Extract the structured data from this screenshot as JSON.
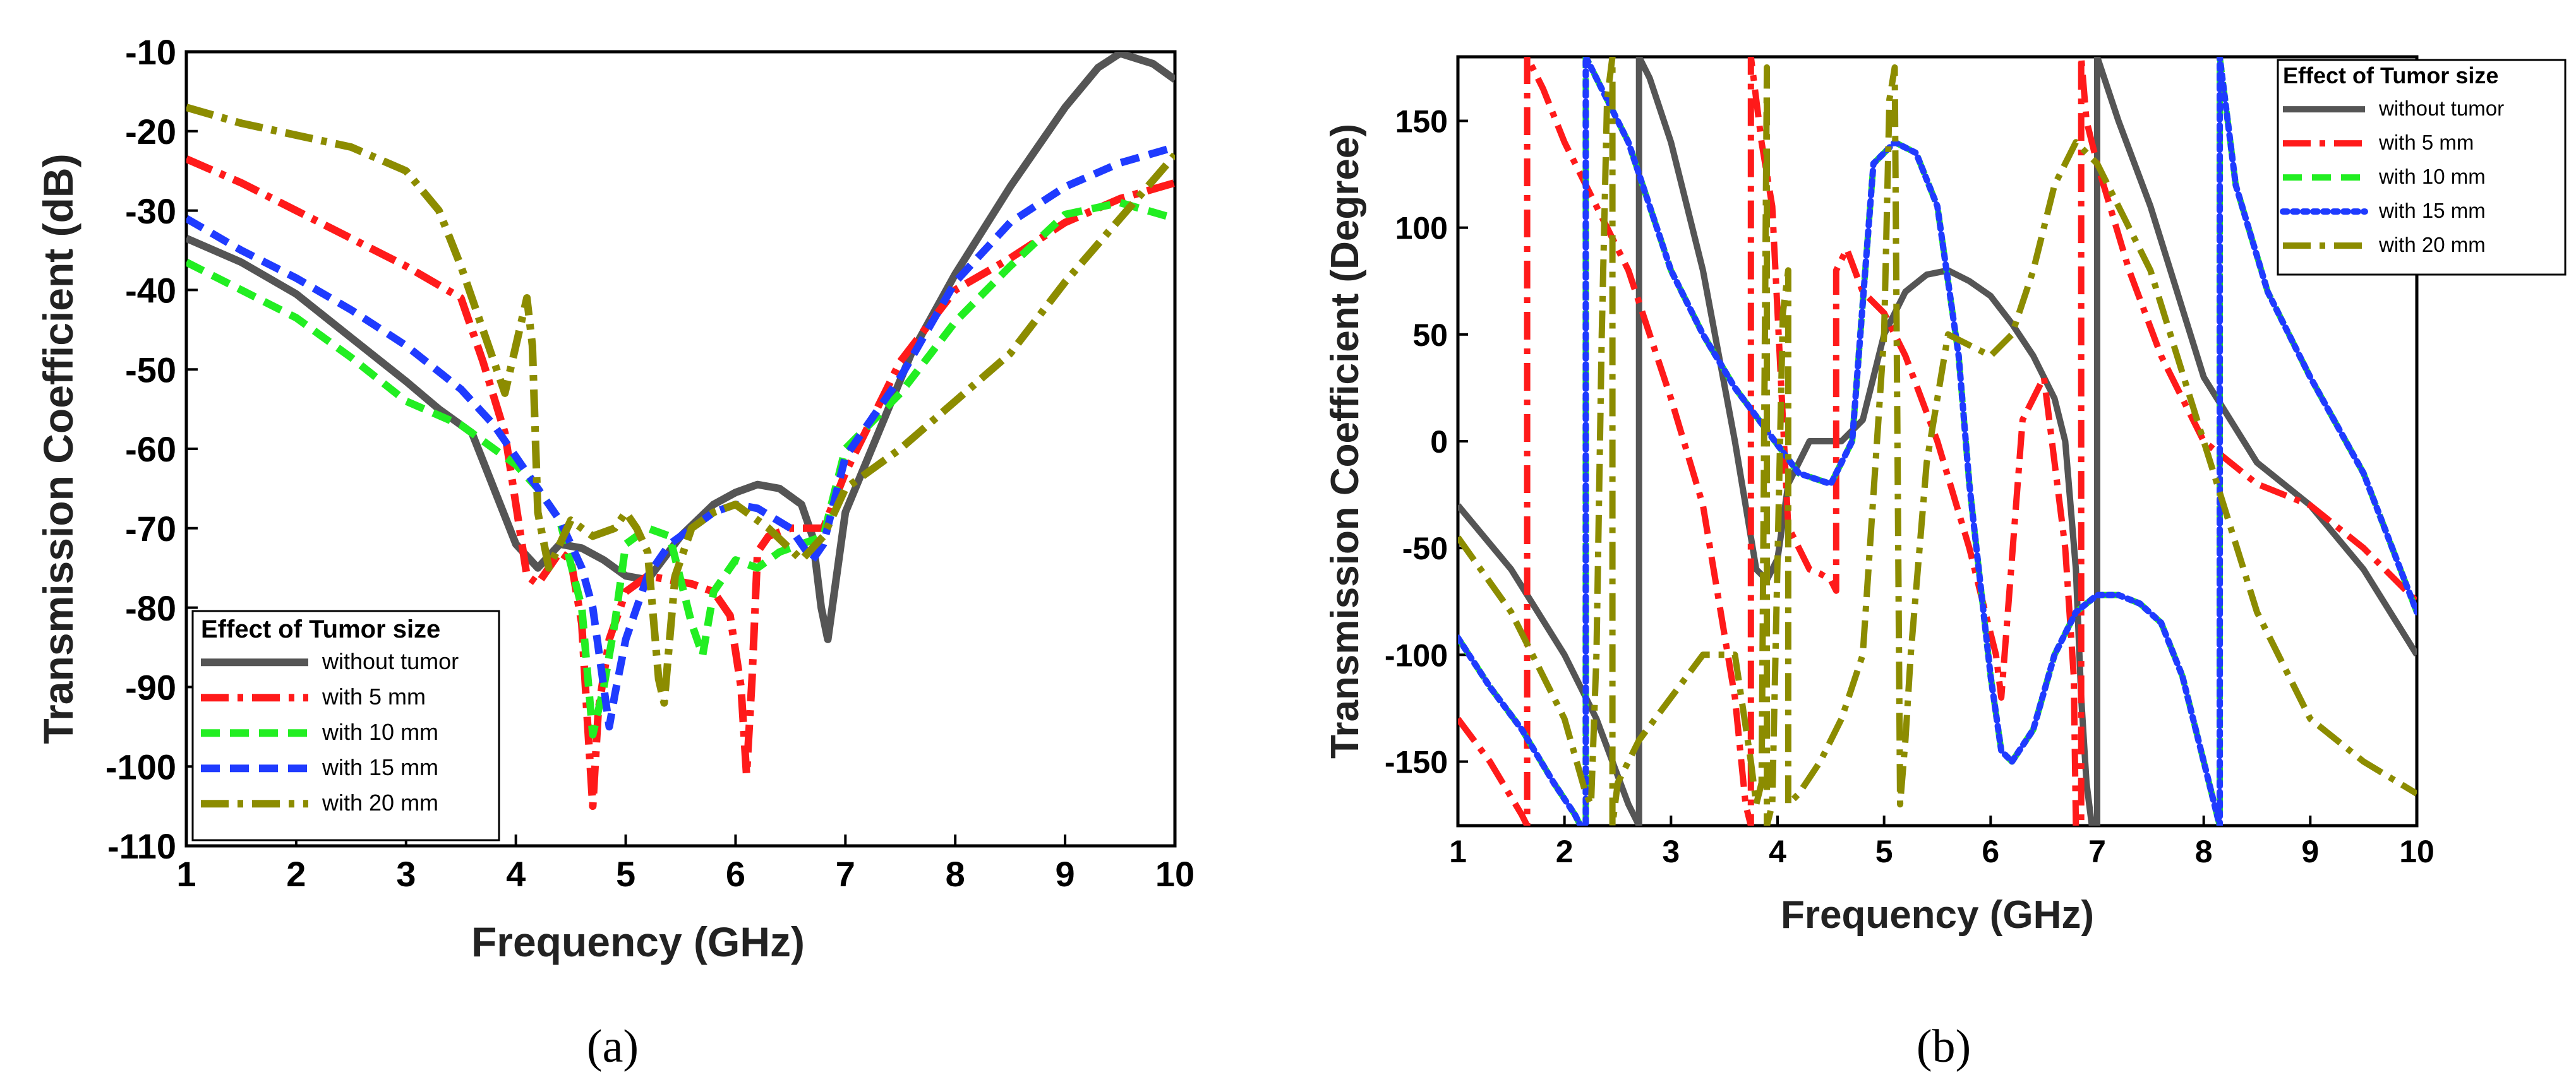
{
  "chart_data": [
    {
      "type": "line",
      "panel_caption": "(a)",
      "xlabel": "Frequency (GHz)",
      "ylabel": "Transmission Coefficient (dB)",
      "xlim": [
        1,
        10
      ],
      "ylim": [
        -110,
        -10
      ],
      "xticks": [
        "1",
        "2",
        "3",
        "4",
        "5",
        "6",
        "7",
        "8",
        "9",
        "10"
      ],
      "yticks": [
        "-10",
        "-20",
        "-30",
        "-40",
        "-50",
        "-60",
        "-70",
        "-80",
        "-90",
        "-100",
        "-110"
      ],
      "legend_title": "Effect of Tumor size",
      "legend_position": "bottom-left",
      "series": [
        {
          "name": "without tumor",
          "color": "#555555",
          "style": "solid",
          "x": [
            1,
            1.5,
            2,
            2.5,
            3,
            3.3,
            3.6,
            3.8,
            4.0,
            4.2,
            4.4,
            4.6,
            4.8,
            5.0,
            5.2,
            5.5,
            5.8,
            6.0,
            6.2,
            6.4,
            6.6,
            6.7,
            6.78,
            6.84,
            6.9,
            7.0,
            7.3,
            7.6,
            8.0,
            8.5,
            9.0,
            9.3,
            9.5,
            9.8,
            10
          ],
          "y": [
            -33.5,
            -36.5,
            -40.5,
            -46,
            -51.5,
            -55,
            -58,
            -65,
            -72,
            -75,
            -72,
            -72.5,
            -74,
            -76,
            -76.5,
            -71,
            -67,
            -65.5,
            -64.5,
            -65,
            -67,
            -71,
            -80,
            -84,
            -78,
            -68,
            -58,
            -48,
            -38,
            -27,
            -17,
            -12,
            -10.2,
            -11.5,
            -13.5
          ]
        },
        {
          "name": "with 5 mm",
          "color": "#ff1a1a",
          "style": "dashdot",
          "x": [
            1,
            1.5,
            2,
            2.5,
            3,
            3.5,
            3.7,
            3.9,
            4.1,
            4.2,
            4.4,
            4.5,
            4.6,
            4.65,
            4.7,
            4.75,
            4.85,
            5.0,
            5.2,
            5.4,
            5.6,
            5.8,
            5.95,
            6.05,
            6.1,
            6.15,
            6.2,
            6.3,
            6.5,
            6.8,
            7.0,
            7.5,
            8.0,
            8.5,
            9.0,
            9.5,
            10
          ],
          "y": [
            -23.5,
            -26.5,
            -30,
            -33.5,
            -37,
            -41,
            -49,
            -58,
            -76,
            -77,
            -73,
            -74,
            -82,
            -94,
            -105,
            -93,
            -84,
            -78,
            -76,
            -76.5,
            -77,
            -78,
            -81,
            -90,
            -101,
            -89,
            -73,
            -71,
            -70,
            -70,
            -63,
            -49,
            -40,
            -36,
            -31.5,
            -28.5,
            -26.5
          ]
        },
        {
          "name": "with 10 mm",
          "color": "#22ee22",
          "style": "dash",
          "x": [
            1,
            1.5,
            2,
            2.5,
            3,
            3.5,
            3.8,
            4.0,
            4.2,
            4.4,
            4.6,
            4.7,
            4.8,
            4.9,
            5.0,
            5.2,
            5.4,
            5.6,
            5.7,
            5.8,
            6.0,
            6.2,
            6.4,
            6.6,
            6.8,
            7.0,
            7.5,
            8.0,
            8.5,
            9.0,
            9.5,
            10
          ],
          "y": [
            -36.5,
            -40,
            -43.5,
            -48.5,
            -54,
            -57,
            -60,
            -62,
            -65,
            -69,
            -80,
            -96,
            -90,
            -82,
            -72,
            -70,
            -71,
            -82,
            -86,
            -78,
            -74,
            -75,
            -73,
            -72,
            -71,
            -60,
            -53,
            -44,
            -37,
            -30.5,
            -29,
            -31
          ]
        },
        {
          "name": "with 15 mm",
          "color": "#1f3bff",
          "style": "dash",
          "x": [
            1,
            1.5,
            2,
            2.5,
            3,
            3.5,
            3.8,
            4.0,
            4.2,
            4.4,
            4.6,
            4.7,
            4.8,
            4.85,
            4.9,
            5.0,
            5.2,
            5.4,
            5.6,
            5.8,
            6.0,
            6.2,
            6.5,
            6.7,
            6.8,
            7.0,
            7.5,
            8.0,
            8.5,
            9.0,
            9.5,
            10
          ],
          "y": [
            -31,
            -35,
            -38.5,
            -42.5,
            -47,
            -52.5,
            -57,
            -61,
            -65,
            -69,
            -75,
            -80,
            -90,
            -95,
            -91,
            -84,
            -76,
            -72,
            -70,
            -68,
            -67,
            -67.5,
            -70,
            -74,
            -72,
            -61,
            -51,
            -39,
            -31.5,
            -27,
            -24,
            -22
          ]
        },
        {
          "name": "with 20 mm",
          "color": "#8c8c00",
          "style": "dashdot",
          "x": [
            1,
            1.5,
            2,
            2.5,
            3,
            3.3,
            3.5,
            3.7,
            3.9,
            4.0,
            4.1,
            4.15,
            4.2,
            4.3,
            4.5,
            4.7,
            4.9,
            5.0,
            5.1,
            5.2,
            5.3,
            5.35,
            5.45,
            5.6,
            5.8,
            6.0,
            6.3,
            6.6,
            6.8,
            7.0,
            7.5,
            8.0,
            8.5,
            9.0,
            9.5,
            10
          ],
          "y": [
            -17,
            -19,
            -20.5,
            -22,
            -25,
            -30,
            -37,
            -45,
            -53,
            -47,
            -41,
            -47,
            -68,
            -75,
            -69,
            -71,
            -70,
            -68,
            -70,
            -73,
            -89,
            -92,
            -76,
            -70,
            -68,
            -67,
            -70,
            -74,
            -71,
            -65,
            -60,
            -54,
            -48,
            -39,
            -31,
            -23
          ]
        }
      ]
    },
    {
      "type": "line",
      "panel_caption": "(b)",
      "xlabel": "Frequency (GHz)",
      "ylabel": "Transmission Coefficient (Degree)",
      "xlim": [
        1,
        10
      ],
      "ylim": [
        -180,
        180
      ],
      "xticks": [
        "1",
        "2",
        "3",
        "4",
        "5",
        "6",
        "7",
        "8",
        "9",
        "10"
      ],
      "yticks": [
        "150",
        "100",
        "50",
        "0",
        "-50",
        "-100",
        "-150"
      ],
      "legend_title": "Effect of Tumor size",
      "legend_position": "top-right",
      "series": [
        {
          "name": "without tumor",
          "color": "#555555",
          "style": "solid",
          "x": [
            1,
            1.5,
            2,
            2.3,
            2.6,
            2.7,
            2.7,
            2.8,
            3.0,
            3.3,
            3.6,
            3.8,
            3.9,
            4.0,
            4.1,
            4.3,
            4.6,
            4.8,
            5.0,
            5.2,
            5.4,
            5.6,
            5.8,
            6.0,
            6.2,
            6.4,
            6.6,
            6.7,
            6.8,
            6.85,
            6.9,
            6.95,
            7.0,
            7.0,
            7.2,
            7.5,
            8.0,
            8.5,
            9.0,
            9.5,
            10
          ],
          "y": [
            -30,
            -60,
            -100,
            -130,
            -170,
            -180,
            180,
            170,
            140,
            80,
            0,
            -60,
            -65,
            -55,
            -20,
            0,
            0,
            10,
            50,
            70,
            78,
            80,
            75,
            68,
            55,
            40,
            20,
            0,
            -60,
            -120,
            -160,
            -180,
            -180,
            180,
            150,
            110,
            30,
            -10,
            -30,
            -60,
            -100
          ]
        },
        {
          "name": "with 5 mm",
          "color": "#ff1a1a",
          "style": "dashdot",
          "x": [
            1,
            1.3,
            1.6,
            1.65,
            1.65,
            1.8,
            2.0,
            2.3,
            2.6,
            3.0,
            3.3,
            3.6,
            3.7,
            3.75,
            3.75,
            3.85,
            3.95,
            4.1,
            4.3,
            4.4,
            4.5,
            4.55,
            4.55,
            4.65,
            4.8,
            5.0,
            5.2,
            5.5,
            5.8,
            6.0,
            6.05,
            6.1,
            6.3,
            6.5,
            6.7,
            6.78,
            6.8,
            6.85,
            6.85,
            6.9,
            7.0,
            7.3,
            7.6,
            8.0,
            8.5,
            9.0,
            9.5,
            10
          ],
          "y": [
            -130,
            -150,
            -175,
            -180,
            180,
            165,
            140,
            110,
            80,
            20,
            -30,
            -120,
            -170,
            -180,
            180,
            140,
            110,
            -40,
            -60,
            -62,
            -65,
            -70,
            80,
            90,
            70,
            60,
            40,
            0,
            -50,
            -90,
            -100,
            -120,
            10,
            30,
            -50,
            -110,
            -180,
            -180,
            180,
            150,
            130,
            80,
            40,
            0,
            -20,
            -30,
            -50,
            -75
          ]
        },
        {
          "name": "with 10 mm",
          "color": "#22ee22",
          "style": "dash",
          "x": [
            1,
            1.3,
            1.6,
            1.9,
            2.1,
            2.15,
            2.2,
            2.2,
            2.4,
            2.6,
            2.8,
            3.0,
            3.3,
            3.6,
            3.9,
            4.2,
            4.5,
            4.7,
            4.9,
            5.1,
            5.3,
            5.5,
            5.7,
            5.8,
            6.0,
            6.1,
            6.2,
            6.4,
            6.6,
            6.8,
            7.0,
            7.2,
            7.4,
            7.6,
            7.8,
            8.0,
            8.1,
            8.15,
            8.15,
            8.3,
            8.6,
            9.0,
            9.5,
            10
          ],
          "y": [
            -92,
            -115,
            -135,
            -160,
            -175,
            -180,
            -180,
            180,
            160,
            140,
            110,
            80,
            50,
            25,
            5,
            -15,
            -20,
            0,
            130,
            140,
            135,
            110,
            40,
            -20,
            -110,
            -145,
            -150,
            -135,
            -100,
            -80,
            -72,
            -72,
            -76,
            -85,
            -110,
            -150,
            -170,
            -180,
            180,
            120,
            70,
            30,
            -15,
            -80
          ]
        },
        {
          "name": "with 15 mm",
          "color": "#1f3bff",
          "style": "dot",
          "x": [
            1,
            1.3,
            1.6,
            1.9,
            2.1,
            2.15,
            2.2,
            2.2,
            2.4,
            2.6,
            2.8,
            3.0,
            3.3,
            3.6,
            3.9,
            4.2,
            4.5,
            4.7,
            4.9,
            5.1,
            5.3,
            5.5,
            5.7,
            5.8,
            6.0,
            6.1,
            6.2,
            6.4,
            6.6,
            6.8,
            7.0,
            7.2,
            7.4,
            7.6,
            7.8,
            8.0,
            8.1,
            8.15,
            8.15,
            8.3,
            8.6,
            9.0,
            9.5,
            10
          ],
          "y": [
            -92,
            -115,
            -135,
            -160,
            -175,
            -180,
            -180,
            180,
            160,
            140,
            110,
            80,
            50,
            25,
            5,
            -15,
            -20,
            0,
            130,
            140,
            135,
            110,
            40,
            -20,
            -110,
            -145,
            -150,
            -135,
            -100,
            -80,
            -72,
            -72,
            -76,
            -85,
            -110,
            -150,
            -170,
            -180,
            180,
            120,
            70,
            30,
            -15,
            -80
          ]
        },
        {
          "name": "with 20 mm",
          "color": "#8c8c00",
          "style": "dashdot",
          "x": [
            1,
            1.5,
            2.0,
            2.2,
            2.25,
            2.3,
            2.35,
            2.4,
            2.45,
            2.45,
            2.5,
            2.7,
            3.0,
            3.3,
            3.6,
            3.75,
            3.8,
            3.85,
            3.9,
            3.9,
            3.95,
            4.05,
            4.1,
            4.1,
            4.2,
            4.4,
            4.6,
            4.8,
            5.0,
            5.05,
            5.1,
            5.15,
            5.2,
            5.25,
            5.4,
            5.6,
            5.8,
            6.0,
            6.2,
            6.4,
            6.6,
            6.8,
            7.0,
            7.5,
            8.0,
            8.5,
            9.0,
            9.5,
            10
          ],
          "y": [
            -45,
            -80,
            -130,
            -165,
            -170,
            -100,
            50,
            160,
            180,
            -180,
            -160,
            -140,
            -120,
            -100,
            -100,
            -150,
            -170,
            -160,
            175,
            -180,
            -170,
            60,
            80,
            -170,
            -165,
            -150,
            -130,
            -100,
            50,
            160,
            175,
            -170,
            -140,
            -100,
            -10,
            50,
            45,
            40,
            50,
            80,
            120,
            140,
            130,
            80,
            0,
            -80,
            -130,
            -150,
            -165
          ]
        }
      ]
    }
  ]
}
